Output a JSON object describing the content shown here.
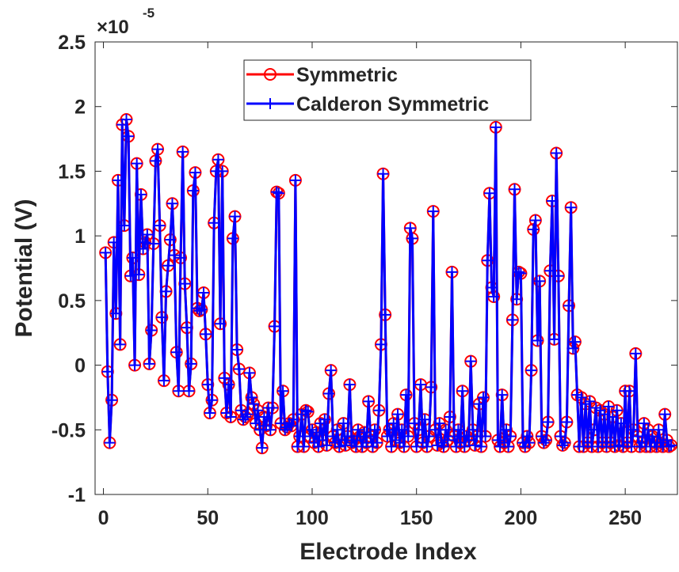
{
  "chart_data": {
    "type": "line",
    "xlabel": "Electrode Index",
    "ylabel": "Potential (V)",
    "y_multiplier": "×10",
    "y_exponent": "-5",
    "xlim": [
      -4,
      275
    ],
    "xticks": [
      0,
      50,
      100,
      150,
      200,
      250
    ],
    "ylim": [
      -1,
      2.5
    ],
    "yticks": [
      -1,
      -0.5,
      0,
      0.5,
      1,
      1.5,
      2,
      2.5
    ],
    "legend_loc": "upper center",
    "x": [
      1,
      2,
      3,
      4,
      5,
      6,
      7,
      8,
      9,
      10,
      11,
      12,
      13,
      14,
      15,
      16,
      17,
      18,
      19,
      20,
      21,
      22,
      23,
      24,
      25,
      26,
      27,
      28,
      29,
      30,
      31,
      32,
      33,
      34,
      35,
      36,
      37,
      38,
      39,
      40,
      41,
      42,
      43,
      44,
      45,
      46,
      47,
      48,
      49,
      50,
      51,
      52,
      53,
      54,
      55,
      56,
      57,
      58,
      59,
      60,
      61,
      62,
      63,
      64,
      65,
      66,
      67,
      68,
      69,
      70,
      71,
      72,
      73,
      74,
      75,
      76,
      77,
      78,
      79,
      80,
      81,
      82,
      83,
      84,
      85,
      86,
      87,
      88,
      89,
      90,
      91,
      92,
      93,
      94,
      95,
      96,
      97,
      98,
      99,
      100,
      101,
      102,
      103,
      104,
      105,
      106,
      107,
      108,
      109,
      110,
      111,
      112,
      113,
      114,
      115,
      116,
      117,
      118,
      119,
      120,
      121,
      122,
      123,
      124,
      125,
      126,
      127,
      128,
      129,
      130,
      131,
      132,
      133,
      134,
      135,
      136,
      137,
      138,
      139,
      140,
      141,
      142,
      143,
      144,
      145,
      146,
      147,
      148,
      149,
      150,
      151,
      152,
      153,
      154,
      155,
      156,
      157,
      158,
      159,
      160,
      161,
      162,
      163,
      164,
      165,
      166,
      167,
      168,
      169,
      170,
      171,
      172,
      173,
      174,
      175,
      176,
      177,
      178,
      179,
      180,
      181,
      182,
      183,
      184,
      185,
      186,
      187,
      188,
      189,
      190,
      191,
      192,
      193,
      194,
      195,
      196,
      197,
      198,
      199,
      200,
      201,
      202,
      203,
      204,
      205,
      206,
      207,
      208,
      209,
      210,
      211,
      212,
      213,
      214,
      215,
      216,
      217,
      218,
      219,
      220,
      221,
      222,
      223,
      224,
      225,
      226,
      227,
      228,
      229,
      230,
      231,
      232,
      233,
      234,
      235,
      236,
      237,
      238,
      239,
      240,
      241,
      242,
      243,
      244,
      245,
      246,
      247,
      248,
      249,
      250,
      251,
      252,
      253,
      254,
      255,
      256,
      257,
      258,
      259,
      260,
      261,
      262,
      263,
      264,
      265,
      266,
      267,
      268,
      269,
      270,
      271,
      272
    ],
    "series": [
      {
        "name": "Symmetric",
        "color": "#ff0000",
        "marker": "circle",
        "values": [
          0.87,
          -0.05,
          -0.6,
          -0.27,
          0.95,
          0.4,
          1.43,
          0.16,
          1.86,
          1.08,
          1.9,
          1.77,
          0.69,
          0.83,
          0.0,
          1.56,
          0.7,
          1.32,
          0.9,
          0.95,
          1.01,
          0.01,
          0.27,
          0.94,
          1.58,
          1.67,
          1.08,
          0.37,
          -0.12,
          0.57,
          0.77,
          0.97,
          1.25,
          0.85,
          0.1,
          -0.2,
          0.83,
          1.65,
          0.63,
          0.29,
          -0.2,
          0.01,
          1.35,
          1.49,
          0.44,
          0.42,
          0.43,
          0.56,
          0.24,
          -0.15,
          -0.37,
          -0.27,
          1.1,
          1.5,
          1.59,
          0.32,
          1.5,
          -0.1,
          -0.37,
          -0.15,
          -0.4,
          0.98,
          1.15,
          0.12,
          -0.03,
          -0.35,
          -0.42,
          -0.4,
          -0.38,
          -0.06,
          -0.25,
          -0.3,
          -0.45,
          -0.35,
          -0.5,
          -0.64,
          -0.4,
          -0.47,
          -0.33,
          -0.5,
          -0.33,
          0.3,
          1.34,
          1.33,
          -0.45,
          -0.2,
          -0.5,
          -0.48,
          -0.45,
          -0.47,
          -0.42,
          1.43,
          -0.63,
          -0.55,
          -0.38,
          -0.63,
          -0.35,
          -0.36,
          -0.55,
          -0.5,
          -0.6,
          -0.52,
          -0.63,
          -0.45,
          -0.58,
          -0.42,
          -0.62,
          -0.22,
          -0.04,
          -0.55,
          -0.6,
          -0.5,
          -0.63,
          -0.58,
          -0.45,
          -0.62,
          -0.55,
          -0.15,
          -0.6,
          -0.58,
          -0.63,
          -0.5,
          -0.55,
          -0.63,
          -0.52,
          -0.6,
          -0.28,
          -0.55,
          -0.63,
          -0.5,
          -0.6,
          -0.35,
          0.16,
          1.48,
          0.39,
          -0.55,
          -0.5,
          -0.63,
          -0.45,
          -0.58,
          -0.38,
          -0.6,
          -0.5,
          -0.63,
          -0.23,
          -0.55,
          1.06,
          0.98,
          -0.45,
          -0.63,
          -0.5,
          -0.15,
          -0.6,
          -0.42,
          -0.63,
          -0.55,
          -0.17,
          1.19,
          -0.5,
          -0.62,
          -0.45,
          -0.6,
          -0.63,
          -0.5,
          -0.58,
          -0.4,
          0.72,
          -0.55,
          -0.63,
          -0.5,
          -0.6,
          -0.2,
          -0.63,
          -0.55,
          -0.58,
          0.03,
          -0.5,
          -0.62,
          -0.55,
          -0.3,
          -0.63,
          -0.25,
          -0.55,
          0.81,
          1.33,
          0.6,
          0.53,
          1.84,
          -0.58,
          -0.63,
          -0.23,
          -0.6,
          -0.5,
          -0.63,
          -0.55,
          0.35,
          1.36,
          0.51,
          0.72,
          0.71,
          -0.6,
          -0.63,
          -0.55,
          -0.6,
          -0.04,
          1.05,
          1.12,
          0.19,
          0.65,
          -0.55,
          -0.6,
          -0.58,
          -0.44,
          0.73,
          1.27,
          0.2,
          1.64,
          0.69,
          -0.55,
          -0.62,
          -0.6,
          -0.44,
          0.46,
          1.22,
          0.13,
          0.18,
          -0.23,
          -0.63,
          -0.25,
          -0.63,
          -0.3,
          -0.6,
          -0.28,
          -0.63,
          -0.5,
          -0.33,
          -0.63,
          -0.35,
          -0.6,
          -0.38,
          -0.63,
          -0.32,
          -0.6,
          -0.4,
          -0.63,
          -0.35,
          -0.62,
          -0.45,
          -0.63,
          -0.2,
          -0.6,
          -0.2,
          -0.63,
          -0.5,
          0.09,
          -0.55,
          -0.63,
          -0.6,
          -0.45,
          -0.63,
          -0.5,
          -0.63,
          -0.55,
          -0.6,
          -0.63,
          -0.5,
          -0.6,
          -0.63,
          -0.38,
          -0.58,
          -0.63,
          -0.62
        ]
      },
      {
        "name": "Calderon Symmetric",
        "color": "#0000ff",
        "marker": "plus",
        "values": [
          0.87,
          -0.05,
          -0.6,
          -0.27,
          0.95,
          0.4,
          1.43,
          0.16,
          1.86,
          1.08,
          1.9,
          1.77,
          0.69,
          0.83,
          0.0,
          1.56,
          0.7,
          1.32,
          0.9,
          0.95,
          1.01,
          0.01,
          0.27,
          0.94,
          1.58,
          1.67,
          1.08,
          0.37,
          -0.12,
          0.57,
          0.77,
          0.97,
          1.25,
          0.85,
          0.1,
          -0.2,
          0.83,
          1.65,
          0.63,
          0.29,
          -0.2,
          0.01,
          1.35,
          1.49,
          0.44,
          0.42,
          0.43,
          0.56,
          0.24,
          -0.15,
          -0.37,
          -0.27,
          1.1,
          1.5,
          1.59,
          0.32,
          1.5,
          -0.1,
          -0.37,
          -0.15,
          -0.4,
          0.98,
          1.15,
          0.12,
          -0.03,
          -0.35,
          -0.42,
          -0.4,
          -0.38,
          -0.06,
          -0.25,
          -0.3,
          -0.45,
          -0.35,
          -0.5,
          -0.64,
          -0.4,
          -0.47,
          -0.33,
          -0.5,
          -0.33,
          0.3,
          1.34,
          1.33,
          -0.45,
          -0.2,
          -0.5,
          -0.48,
          -0.45,
          -0.47,
          -0.42,
          1.43,
          -0.63,
          -0.55,
          -0.38,
          -0.63,
          -0.35,
          -0.36,
          -0.55,
          -0.5,
          -0.6,
          -0.52,
          -0.63,
          -0.45,
          -0.58,
          -0.42,
          -0.62,
          -0.22,
          -0.04,
          -0.55,
          -0.6,
          -0.5,
          -0.63,
          -0.58,
          -0.45,
          -0.62,
          -0.55,
          -0.15,
          -0.6,
          -0.58,
          -0.63,
          -0.5,
          -0.55,
          -0.63,
          -0.52,
          -0.6,
          -0.28,
          -0.55,
          -0.63,
          -0.5,
          -0.6,
          -0.35,
          0.16,
          1.48,
          0.39,
          -0.55,
          -0.5,
          -0.63,
          -0.45,
          -0.58,
          -0.38,
          -0.6,
          -0.5,
          -0.63,
          -0.23,
          -0.55,
          1.06,
          0.98,
          -0.45,
          -0.63,
          -0.5,
          -0.15,
          -0.6,
          -0.42,
          -0.63,
          -0.55,
          -0.17,
          1.19,
          -0.5,
          -0.62,
          -0.45,
          -0.6,
          -0.63,
          -0.5,
          -0.58,
          -0.4,
          0.72,
          -0.55,
          -0.63,
          -0.5,
          -0.6,
          -0.2,
          -0.63,
          -0.55,
          -0.58,
          0.03,
          -0.5,
          -0.62,
          -0.55,
          -0.3,
          -0.63,
          -0.25,
          -0.55,
          0.81,
          1.33,
          0.6,
          0.53,
          1.84,
          -0.58,
          -0.63,
          -0.23,
          -0.6,
          -0.5,
          -0.63,
          -0.55,
          0.35,
          1.36,
          0.51,
          0.72,
          0.71,
          -0.6,
          -0.63,
          -0.55,
          -0.6,
          -0.04,
          1.05,
          1.12,
          0.19,
          0.65,
          -0.55,
          -0.6,
          -0.58,
          -0.44,
          0.73,
          1.27,
          0.2,
          1.64,
          0.69,
          -0.55,
          -0.62,
          -0.6,
          -0.44,
          0.46,
          1.22,
          0.13,
          0.18,
          -0.23,
          -0.63,
          -0.25,
          -0.63,
          -0.3,
          -0.6,
          -0.28,
          -0.63,
          -0.5,
          -0.33,
          -0.63,
          -0.35,
          -0.6,
          -0.38,
          -0.63,
          -0.32,
          -0.6,
          -0.4,
          -0.63,
          -0.35,
          -0.62,
          -0.45,
          -0.63,
          -0.2,
          -0.6,
          -0.2,
          -0.63,
          -0.5,
          0.09,
          -0.55,
          -0.63,
          -0.6,
          -0.45,
          -0.63,
          -0.5,
          -0.63,
          -0.55,
          -0.6,
          -0.63,
          -0.5,
          -0.6,
          -0.63,
          -0.38,
          -0.58,
          -0.63,
          -0.62
        ]
      }
    ]
  }
}
